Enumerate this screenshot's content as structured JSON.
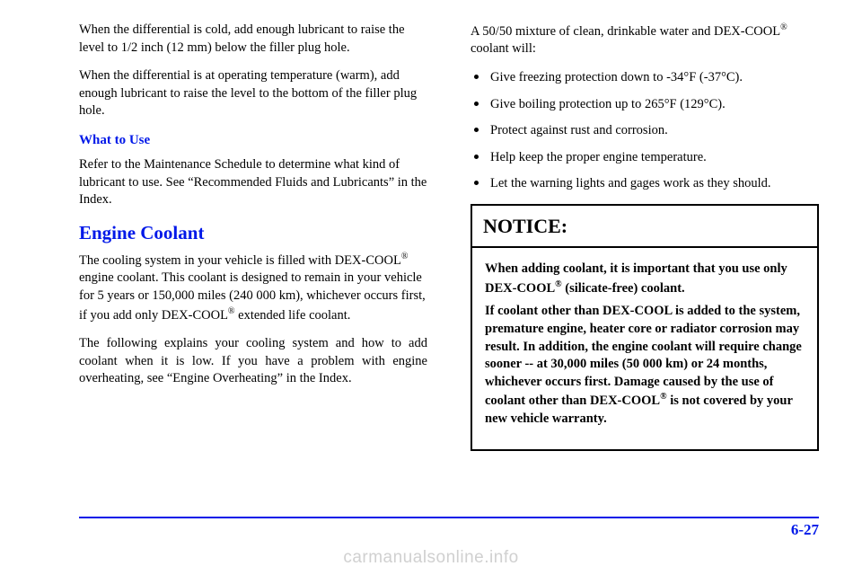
{
  "left": {
    "p1": "When the differential is cold, add enough lubricant to raise the level to 1/2 inch (12 mm) below the filler plug hole.",
    "p2": "When the differential is at operating temperature (warm), add enough lubricant to raise the level to the bottom of the filler plug hole.",
    "sub1": "What to Use",
    "p3": "Refer to the Maintenance Schedule to determine what kind of lubricant to use. See “Recommended Fluids and Lubricants” in the Index.",
    "h1": "Engine Coolant",
    "p4a": "The cooling system in your vehicle is filled with DEX-COOL",
    "p4b": " engine coolant. This coolant is designed to remain in your vehicle for 5 years or 150,000 miles (240 000 km), whichever occurs first, if you add only DEX-COOL",
    "p4c": " extended life coolant.",
    "p5": "The following explains your cooling system and how to add coolant when it is low. If you have a problem with engine overheating, see “Engine Overheating” in the Index."
  },
  "right": {
    "p1a": "A 50/50 mixture of clean, drinkable water and DEX-COOL",
    "p1b": " coolant will:",
    "b1": "Give freezing protection down to -34°F (-37°C).",
    "b2": "Give boiling protection up to 265°F (129°C).",
    "b3": "Protect against rust and corrosion.",
    "b4": "Help keep the proper engine temperature.",
    "b5": "Let the warning lights and gages work as they should.",
    "notice_head": "NOTICE:",
    "n1a": "When adding coolant, it is important that you use only DEX-COOL",
    "n1b": " (silicate-free) coolant.",
    "n2a": "If coolant other than DEX-COOL is added to the system, premature engine, heater core or radiator corrosion may result. In addition, the engine coolant will require change sooner -- at 30,000 miles (50 000 km) or 24 months, whichever occurs first. Damage caused by the use of coolant other than DEX-COOL",
    "n2b": " is not covered by your new vehicle warranty."
  },
  "reg": "®",
  "pagenum": "6-27",
  "watermark": "carmanualsonline.info"
}
